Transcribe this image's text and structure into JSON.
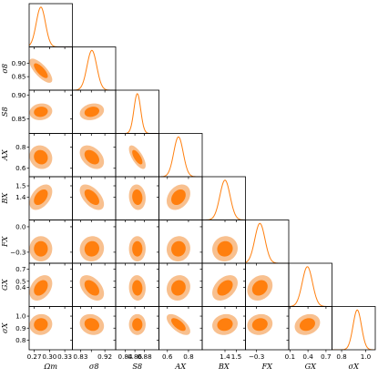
{
  "chart_data": {
    "type": "corner",
    "colors": {
      "outer": "#f8c08f",
      "inner": "#ff7f0e",
      "line": "#ff7f0e"
    },
    "parameters": [
      {
        "key": "om",
        "label": "Ωm",
        "range": [
          0.26,
          0.345
        ],
        "ticks": [
          0.27,
          0.3,
          0.33
        ],
        "tick_labels": [
          "0.27",
          "0.30",
          "0.33"
        ],
        "mean": 0.283,
        "sigma": 0.009
      },
      {
        "key": "s8",
        "label": "σ8",
        "range": [
          0.8,
          0.96
        ],
        "ticks": [
          0.83,
          0.87,
          0.92
        ],
        "tick_labels": [
          "0.83",
          "",
          "0.92"
        ],
        "row_ticks": [
          0.85,
          0.9
        ],
        "row_tick_labels": [
          "0.85",
          "0.90"
        ],
        "mean": 0.872,
        "sigma": 0.018
      },
      {
        "key": "S8",
        "label": "S8",
        "range": [
          0.82,
          0.91
        ],
        "ticks": [
          0.84,
          0.86,
          0.88
        ],
        "tick_labels": [
          "0.84",
          "0.86",
          "0.88"
        ],
        "row_ticks": [
          0.85,
          0.9
        ],
        "row_tick_labels": [
          "0.85",
          "0.90"
        ],
        "mean": 0.865,
        "sigma": 0.007
      },
      {
        "key": "Ax",
        "label": "AX",
        "range": [
          0.52,
          0.93
        ],
        "ticks": [
          0.6,
          0.8
        ],
        "tick_labels": [
          "0.6",
          "0.8"
        ],
        "row_ticks": [
          0.6,
          0.8
        ],
        "row_tick_labels": [
          "0.6",
          "0.8"
        ],
        "mean": 0.705,
        "sigma": 0.045
      },
      {
        "key": "Bx",
        "label": "BX",
        "range": [
          1.2,
          1.58
        ],
        "ticks": [
          1.4,
          1.5
        ],
        "tick_labels": [
          "1.4",
          "1.5"
        ],
        "row_ticks": [
          1.4,
          1.5
        ],
        "row_tick_labels": [
          "1.4",
          "1.5"
        ],
        "mean": 1.4,
        "sigma": 0.045
      },
      {
        "key": "Fx",
        "label": "FX",
        "range": [
          -0.43,
          0.08
        ],
        "ticks": [
          -0.3
        ],
        "tick_labels": [
          "−0.3"
        ],
        "row_ticks": [
          -0.3,
          0.0
        ],
        "row_tick_labels": [
          "−0.3",
          "0.0"
        ],
        "mean": -0.26,
        "sigma": 0.06
      },
      {
        "key": "Gx",
        "label": "GX",
        "range": [
          0.08,
          0.8
        ],
        "ticks": [
          0.1,
          0.4,
          0.7
        ],
        "tick_labels": [
          "0.1",
          "0.4",
          "0.7"
        ],
        "row_ticks": [
          0.4,
          0.5,
          0.7
        ],
        "row_tick_labels": [
          "0.4",
          "0.5",
          "0.7"
        ],
        "mean": 0.39,
        "sigma": 0.085
      },
      {
        "key": "sx",
        "label": "σX",
        "range": [
          0.72,
          1.08
        ],
        "ticks": [
          0.8,
          1.0
        ],
        "tick_labels": [
          "0.8",
          "1.0"
        ],
        "row_ticks": [
          0.8,
          0.9,
          1.0
        ],
        "row_tick_labels": [
          "0.8",
          "0.9",
          "1.0"
        ],
        "mean": 0.93,
        "sigma": 0.035
      }
    ],
    "correlations": [
      {
        "pair": [
          "s8",
          "om"
        ],
        "rho": -0.75
      },
      {
        "pair": [
          "S8",
          "om"
        ],
        "rho": 0.1
      },
      {
        "pair": [
          "S8",
          "s8"
        ],
        "rho": 0.2
      },
      {
        "pair": [
          "Ax",
          "om"
        ],
        "rho": -0.1
      },
      {
        "pair": [
          "Ax",
          "s8"
        ],
        "rho": -0.4
      },
      {
        "pair": [
          "Ax",
          "S8"
        ],
        "rho": -0.7
      },
      {
        "pair": [
          "Bx",
          "om"
        ],
        "rho": 0.45
      },
      {
        "pair": [
          "Bx",
          "s8"
        ],
        "rho": -0.55
      },
      {
        "pair": [
          "Bx",
          "S8"
        ],
        "rho": -0.1
      },
      {
        "pair": [
          "Bx",
          "Ax"
        ],
        "rho": 0.3
      },
      {
        "pair": [
          "Fx",
          "om"
        ],
        "rho": 0.0
      },
      {
        "pair": [
          "Fx",
          "s8"
        ],
        "rho": 0.05
      },
      {
        "pair": [
          "Fx",
          "S8"
        ],
        "rho": 0.0
      },
      {
        "pair": [
          "Fx",
          "Ax"
        ],
        "rho": 0.05
      },
      {
        "pair": [
          "Fx",
          "Bx"
        ],
        "rho": 0.05
      },
      {
        "pair": [
          "Gx",
          "om"
        ],
        "rho": 0.35
      },
      {
        "pair": [
          "Gx",
          "s8"
        ],
        "rho": -0.45
      },
      {
        "pair": [
          "Gx",
          "S8"
        ],
        "rho": -0.05
      },
      {
        "pair": [
          "Gx",
          "Ax"
        ],
        "rho": 0.1
      },
      {
        "pair": [
          "Gx",
          "Bx"
        ],
        "rho": 0.4
      },
      {
        "pair": [
          "Gx",
          "Fx"
        ],
        "rho": 0.2
      },
      {
        "pair": [
          "sx",
          "om"
        ],
        "rho": 0.05
      },
      {
        "pair": [
          "sx",
          "s8"
        ],
        "rho": -0.15
      },
      {
        "pair": [
          "sx",
          "S8"
        ],
        "rho": 0.0
      },
      {
        "pair": [
          "sx",
          "Ax"
        ],
        "rho": -0.65
      },
      {
        "pair": [
          "sx",
          "Bx"
        ],
        "rho": 0.1
      },
      {
        "pair": [
          "sx",
          "Fx"
        ],
        "rho": 0.1
      },
      {
        "pair": [
          "sx",
          "Gx"
        ],
        "rho": 0.2
      }
    ],
    "contour_levels": [
      "1σ",
      "2σ"
    ],
    "grid": false,
    "legend": "none"
  }
}
